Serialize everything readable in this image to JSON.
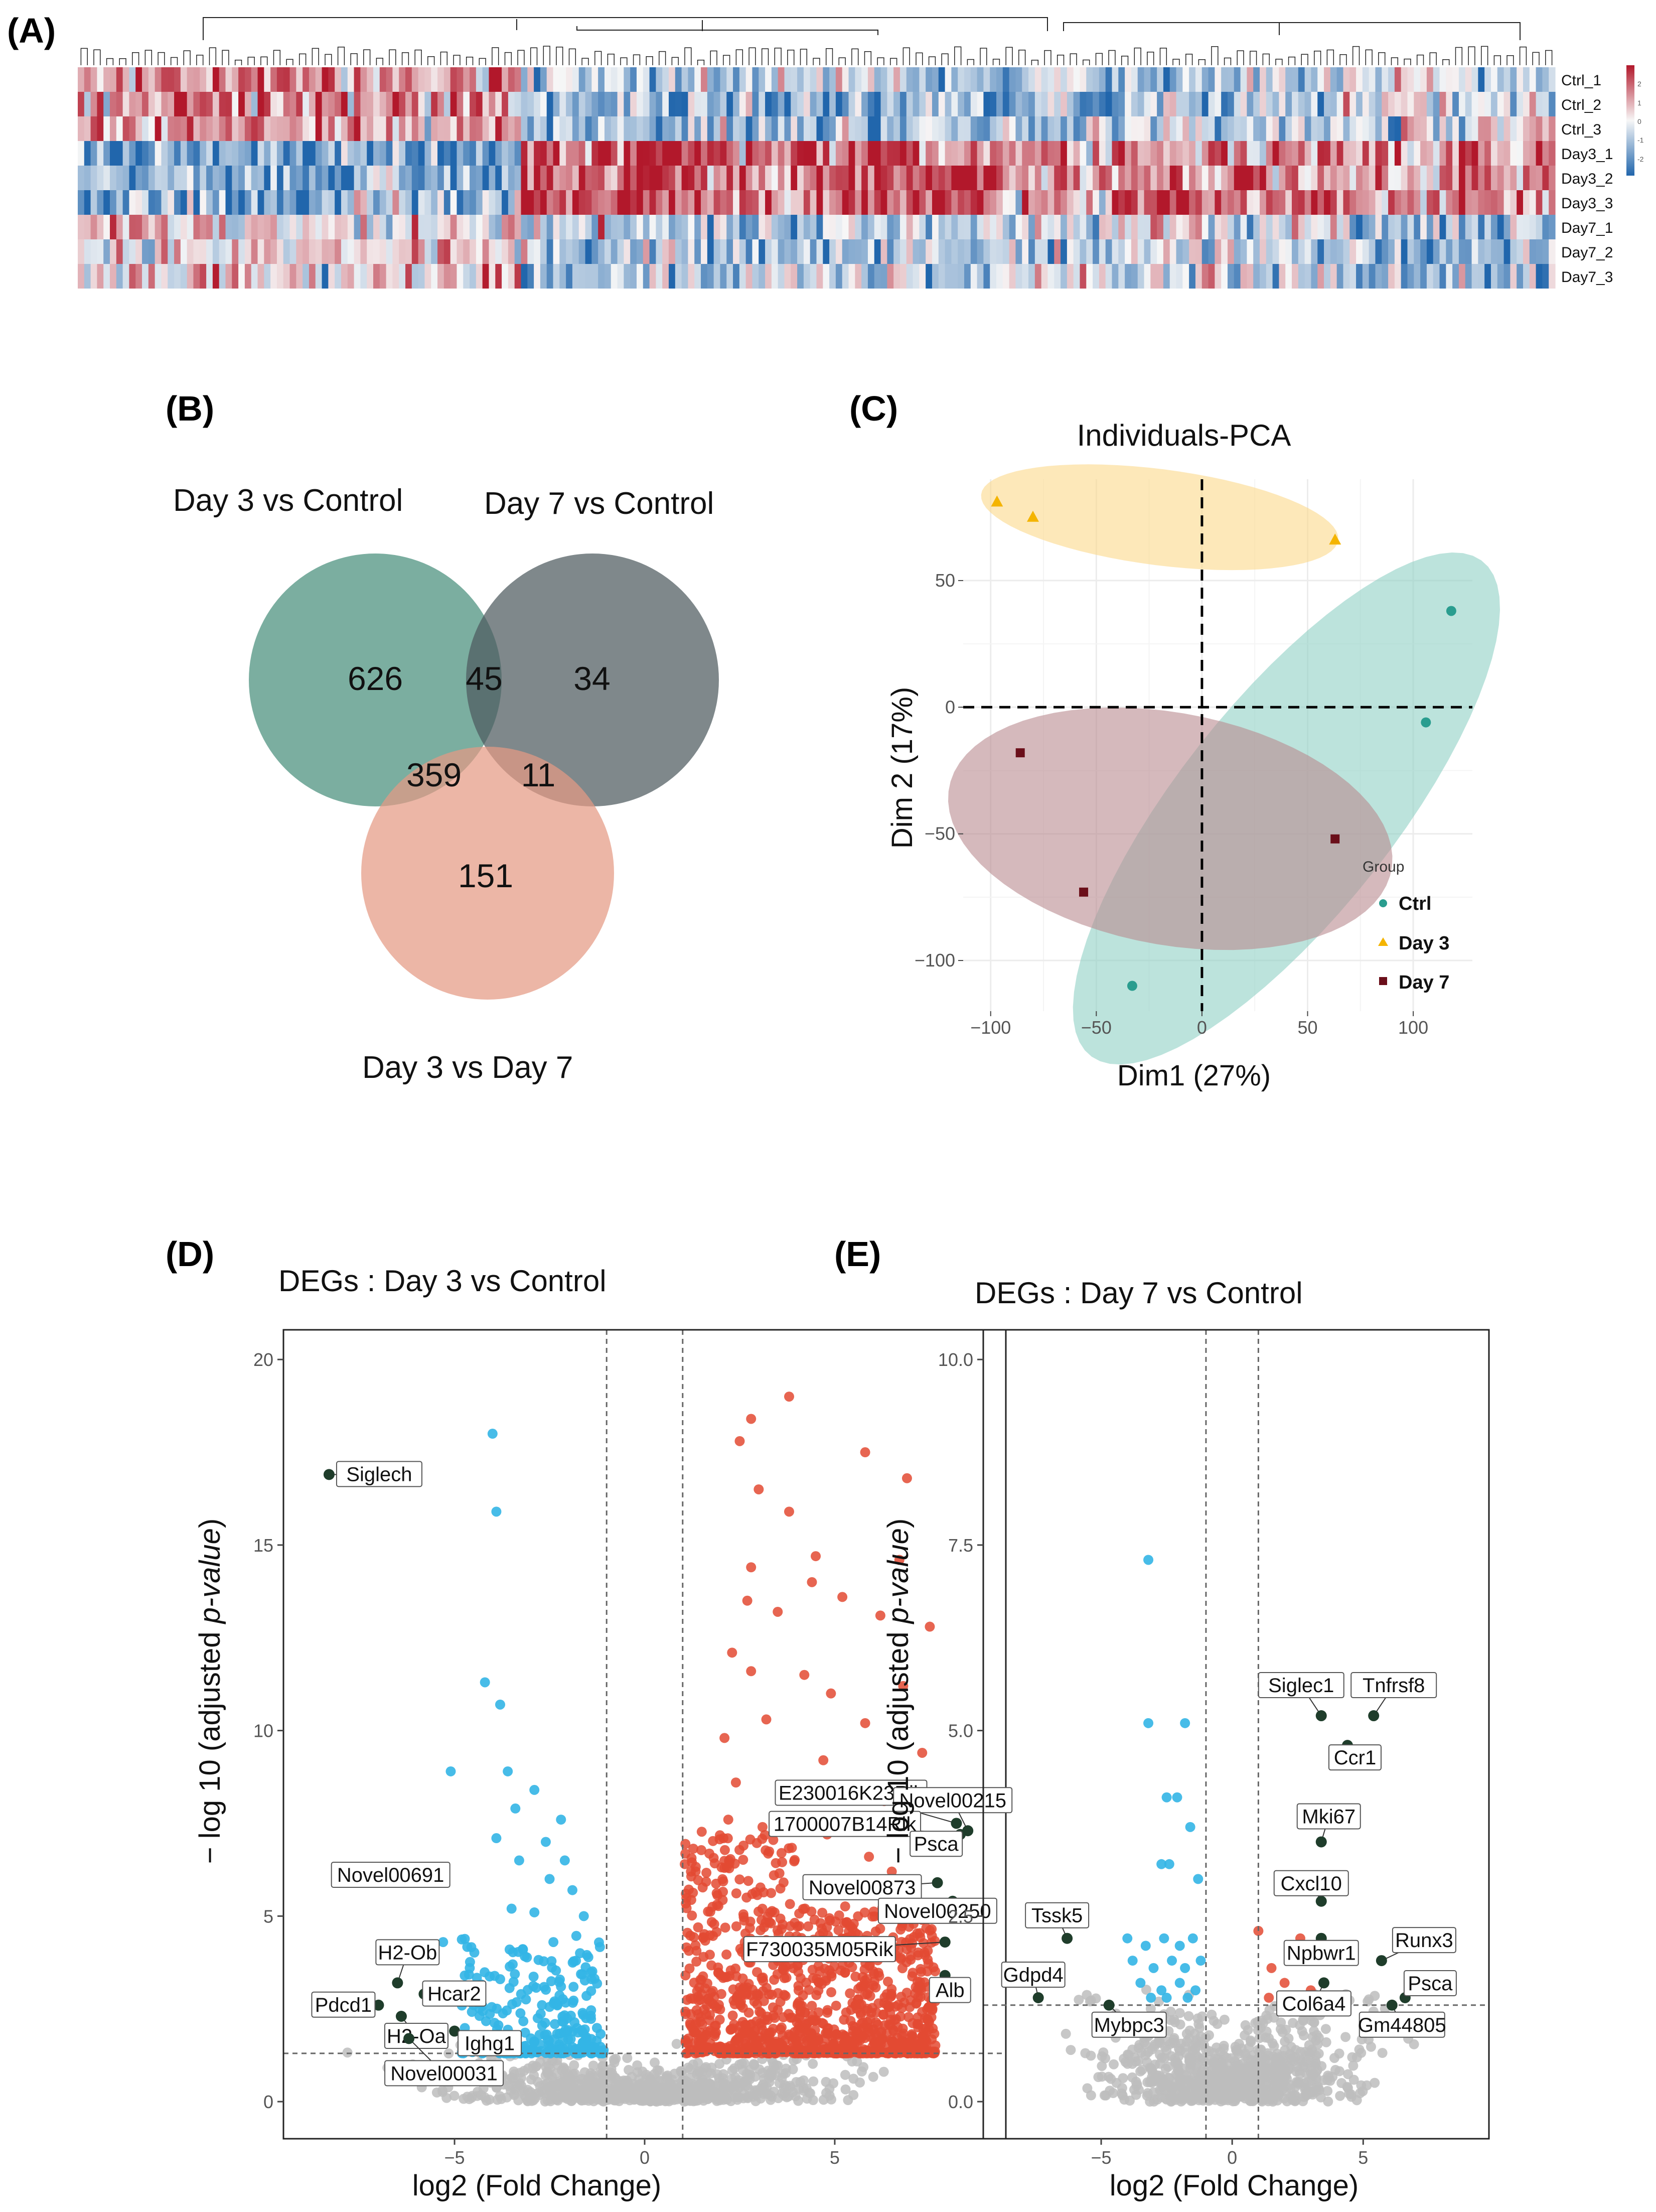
{
  "colors": {
    "heat_high": "#b2182b",
    "heat_mid": "#f7f7f7",
    "heat_low": "#2166ac",
    "venn_day3_control": "#5a9a88",
    "venn_day7_control": "#4e5a5e",
    "venn_day3_day7": "#e59a84",
    "pca_ctrl": "#2a9d8f",
    "pca_day3": "#f4b400",
    "pca_day7": "#6b0f1a",
    "pca_ctrl_ellipse": "#8fd0c4",
    "pca_day3_ellipse": "#fbd98a",
    "pca_day7_ellipse": "#b98a8f",
    "volcano_up": "#e34a33",
    "volcano_down": "#33b5e5",
    "volcano_ns": "#bdbdbd",
    "volcano_labeled": "#1f3d2b"
  },
  "panel_A": {
    "letter": "(A)",
    "rows": [
      "Ctrl_1",
      "Ctrl_2",
      "Ctrl_3",
      "Day3_1",
      "Day3_2",
      "Day3_3",
      "Day7_1",
      "Day7_2",
      "Day7_3"
    ],
    "colorbar_ticks": [
      "2",
      "1",
      "0",
      "-1",
      "-2"
    ]
  },
  "panel_B": {
    "letter": "(B)",
    "sets": {
      "day3_vs_control": "Day 3 vs Control",
      "day7_vs_control": "Day 7 vs Control",
      "day3_vs_day7": "Day 3 vs Day 7"
    },
    "counts": {
      "only_day3_ctrl": "626",
      "day3ctrl_day7ctrl": "45",
      "only_day7_ctrl": "34",
      "day3ctrl_day3day7": "359",
      "day7ctrl_day3day7": "11",
      "only_day3_day7": "151"
    }
  },
  "panel_C": {
    "letter": "(C)",
    "chart_data": {
      "type": "scatter",
      "title": "Individuals-PCA",
      "xlabel": "Dim1 (27%)",
      "ylabel": "Dim 2 (17%)",
      "xlim": [
        -113,
        128
      ],
      "ylim": [
        -120,
        90
      ],
      "xticks": [
        -100,
        -50,
        0,
        50,
        100
      ],
      "yticks": [
        -100,
        -50,
        0,
        50
      ],
      "xtick_labels": [
        "−100",
        "−50",
        "0",
        "50",
        "100"
      ],
      "ytick_labels": [
        "−100",
        "−50",
        "0",
        "50"
      ],
      "legend_title": "Group",
      "series": [
        {
          "name": "Ctrl",
          "marker": "circle",
          "points": [
            [
              118,
              38
            ],
            [
              106,
              -6
            ],
            [
              -33,
              -110
            ]
          ]
        },
        {
          "name": "Day 3",
          "marker": "triangle",
          "points": [
            [
              -97,
              81
            ],
            [
              -80,
              75
            ],
            [
              63,
              66
            ]
          ]
        },
        {
          "name": "Day 7",
          "marker": "square",
          "points": [
            [
              -86,
              -18
            ],
            [
              63,
              -52
            ],
            [
              -56,
              -73
            ]
          ]
        }
      ],
      "ellipses": [
        {
          "group": "Day 3",
          "cx": -20,
          "cy": 75,
          "rx": 85,
          "ry": 19,
          "angle_deg": -6
        },
        {
          "group": "Ctrl",
          "cx": 40,
          "cy": -40,
          "rx": 135,
          "ry": 47,
          "angle_deg": 45
        },
        {
          "group": "Day 7",
          "cx": -15,
          "cy": -48,
          "rx": 106,
          "ry": 46,
          "angle_deg": -8
        }
      ]
    }
  },
  "panel_D": {
    "letter": "(D)",
    "chart_data": {
      "type": "scatter",
      "title": "DEGs : Day 3 vs Control",
      "xlabel": "log2 (Fold Change)",
      "ylabel_prefix": "− log 10 (adjusted ",
      "ylabel_italic": "p-value",
      "ylabel_suffix": ")",
      "xlim": [
        -9.5,
        9.5
      ],
      "ylim": [
        -1,
        20.8
      ],
      "xticks": [
        -5,
        0,
        5
      ],
      "yticks": [
        0,
        5,
        10,
        15,
        20
      ],
      "xtick_labels": [
        "−5",
        "0",
        "5"
      ],
      "ytick_labels": [
        "0",
        "5",
        "10",
        "15",
        "20"
      ],
      "fc_threshold": 1,
      "p_threshold": 1.3,
      "up_points": [
        [
          3.8,
          19
        ],
        [
          2.8,
          18.4
        ],
        [
          2.5,
          17.8
        ],
        [
          5.8,
          17.5
        ],
        [
          6.9,
          16.8
        ],
        [
          3,
          16.5
        ],
        [
          3.8,
          15.9
        ],
        [
          4.5,
          14.7
        ],
        [
          6.7,
          14.6
        ],
        [
          2.8,
          14.4
        ],
        [
          4.4,
          14
        ],
        [
          5.2,
          13.6
        ],
        [
          2.7,
          13.5
        ],
        [
          3.5,
          13.2
        ],
        [
          6.2,
          13.1
        ],
        [
          7.5,
          12.8
        ],
        [
          2.3,
          12.1
        ],
        [
          2.8,
          11.6
        ],
        [
          4.2,
          11.5
        ],
        [
          4.9,
          11
        ],
        [
          6.8,
          11.2
        ],
        [
          3.2,
          10.3
        ],
        [
          5.8,
          10.2
        ],
        [
          2.1,
          9.8
        ],
        [
          7.3,
          9.4
        ],
        [
          4.7,
          9.2
        ],
        [
          2.4,
          8.6
        ],
        [
          4,
          8.4
        ],
        [
          5.5,
          8.2
        ],
        [
          6.3,
          8.1
        ],
        [
          2.2,
          7.6
        ],
        [
          3.1,
          7.4
        ],
        [
          4.8,
          7.2
        ],
        [
          2.6,
          6.9
        ],
        [
          3.6,
          6.7
        ],
        [
          5.9,
          6.6
        ],
        [
          2.1,
          6.3
        ],
        [
          3.4,
          6.1
        ],
        [
          6.5,
          6.2
        ]
      ],
      "down_points": [
        [
          -4,
          18
        ],
        [
          -3.9,
          15.9
        ],
        [
          -4.2,
          11.3
        ],
        [
          -3.8,
          10.7
        ],
        [
          -5.1,
          8.9
        ],
        [
          -3.6,
          8.9
        ],
        [
          -2.9,
          8.4
        ],
        [
          -3.4,
          7.9
        ],
        [
          -2.2,
          7.6
        ],
        [
          -3.9,
          7.1
        ],
        [
          -2.6,
          7
        ],
        [
          -2.1,
          6.5
        ],
        [
          -3.3,
          6.5
        ],
        [
          -2.5,
          6
        ],
        [
          -1.9,
          5.7
        ],
        [
          -3.5,
          5.2
        ],
        [
          -2.9,
          5.1
        ],
        [
          -1.6,
          5
        ],
        [
          -5.3,
          4.3
        ],
        [
          -3.2,
          4.1
        ],
        [
          -2.4,
          4.3
        ],
        [
          -1.7,
          4
        ],
        [
          -4.6,
          3.6
        ],
        [
          -3.8,
          3.3
        ],
        [
          -2.2,
          3.1
        ],
        [
          -1.4,
          3.3
        ],
        [
          -4.5,
          2.6
        ],
        [
          -2.7,
          2.6
        ]
      ],
      "labeled_points": [
        {
          "label": "Siglech",
          "x": -8.3,
          "y": 16.9
        },
        {
          "label": "Novel00691",
          "x": -8,
          "y": 6.1
        },
        {
          "label": "H2-Ob",
          "x": -6.5,
          "y": 3.2
        },
        {
          "label": "Pdcd1",
          "x": -7,
          "y": 2.6
        },
        {
          "label": "Hcar2",
          "x": -5.8,
          "y": 2.9
        },
        {
          "label": "H2-Oa",
          "x": -6.4,
          "y": 2.3
        },
        {
          "label": "Ighg1",
          "x": -5,
          "y": 1.9
        },
        {
          "label": "Novel00031",
          "x": -6.2,
          "y": 1.7
        },
        {
          "label": "E230016K23Rik",
          "x": 8.2,
          "y": 7.5
        },
        {
          "label": "Novel00215",
          "x": 8.5,
          "y": 7.3
        },
        {
          "label": "1700007B14Rik",
          "x": 8.3,
          "y": 7.2
        },
        {
          "label": "Psca",
          "x": 7.8,
          "y": 6.8
        },
        {
          "label": "Novel00873",
          "x": 7.7,
          "y": 5.9
        },
        {
          "label": "Novel00250",
          "x": 8.1,
          "y": 5.4
        },
        {
          "label": "F730035M05Rik",
          "x": 7.9,
          "y": 4.3
        },
        {
          "label": "Alb",
          "x": 7.9,
          "y": 3.4
        }
      ]
    }
  },
  "panel_E": {
    "letter": "(E)",
    "chart_data": {
      "type": "scatter",
      "title": "DEGs : Day 7 vs Control",
      "xlabel": "log2 (Fold Change)",
      "ylabel_prefix": "− log 10 (adjusted ",
      "ylabel_italic": "p-value",
      "ylabel_suffix": ")",
      "xlim": [
        -9.5,
        9.8
      ],
      "ylim": [
        -0.5,
        10.4
      ],
      "xticks": [
        -5,
        0,
        5
      ],
      "yticks": [
        0,
        2.5,
        5,
        7.5,
        10
      ],
      "xtick_labels": [
        "−5",
        "0",
        "5"
      ],
      "ytick_labels": [
        "0.0",
        "2.5",
        "5.0",
        "7.5",
        "10.0"
      ],
      "fc_threshold": 1,
      "p_threshold": 1.3,
      "up_points": [
        [
          1,
          2.3
        ],
        [
          2.6,
          2.2
        ],
        [
          1.5,
          1.8
        ],
        [
          3,
          1.5
        ],
        [
          2,
          1.6
        ],
        [
          2.8,
          1.4
        ],
        [
          1.4,
          1.4
        ]
      ],
      "down_points": [
        [
          -3.2,
          7.3
        ],
        [
          -3.2,
          5.1
        ],
        [
          -1.8,
          5.1
        ],
        [
          -2.5,
          4.1
        ],
        [
          -2.1,
          4.1
        ],
        [
          -1.6,
          3.7
        ],
        [
          -2.7,
          3.2
        ],
        [
          -2.4,
          3.2
        ],
        [
          -1.3,
          3
        ],
        [
          -4,
          2.2
        ],
        [
          -3.3,
          2.1
        ],
        [
          -2.6,
          2.2
        ],
        [
          -2,
          2.1
        ],
        [
          -1.5,
          2.2
        ],
        [
          -3.8,
          1.9
        ],
        [
          -3,
          1.8
        ],
        [
          -2.3,
          1.9
        ],
        [
          -1.8,
          1.8
        ],
        [
          -1.2,
          1.9
        ],
        [
          -3.5,
          1.6
        ],
        [
          -2.7,
          1.5
        ],
        [
          -2,
          1.6
        ],
        [
          -1.4,
          1.5
        ],
        [
          -3.1,
          1.4
        ],
        [
          -2.5,
          1.4
        ],
        [
          -1.7,
          1.4
        ]
      ],
      "labeled_points": [
        {
          "label": "Tssk5",
          "x": -6.3,
          "y": 2.2
        },
        {
          "label": "Gdpd4",
          "x": -7.4,
          "y": 1.4
        },
        {
          "label": "Mybpc3",
          "x": -4.7,
          "y": 1.3
        },
        {
          "label": "Siglec1",
          "x": 3.4,
          "y": 5.2
        },
        {
          "label": "Tnfrsf8",
          "x": 5.4,
          "y": 5.2
        },
        {
          "label": "Ccr1",
          "x": 4.4,
          "y": 4.8
        },
        {
          "label": "Mki67",
          "x": 3.4,
          "y": 3.5
        },
        {
          "label": "Cxcl10",
          "x": 3.4,
          "y": 2.7
        },
        {
          "label": "Runx3",
          "x": 5.7,
          "y": 1.9
        },
        {
          "label": "Npbwr1",
          "x": 3.4,
          "y": 2.2
        },
        {
          "label": "Psca",
          "x": 6.6,
          "y": 1.4
        },
        {
          "label": "Col6a4",
          "x": 3.5,
          "y": 1.6
        },
        {
          "label": "Gm44805",
          "x": 6.1,
          "y": 1.3
        }
      ]
    }
  }
}
